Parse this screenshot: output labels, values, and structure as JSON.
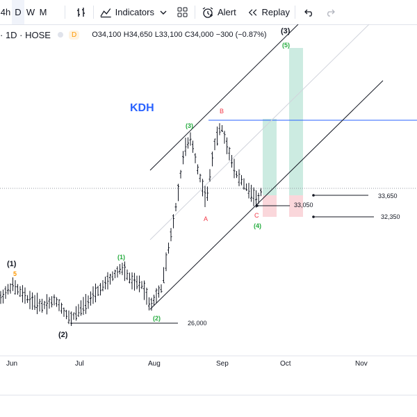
{
  "toolbar": {
    "timeframes": [
      "4h",
      "D",
      "W",
      "M"
    ],
    "active_timeframe": "D",
    "indicators_label": "Indicators",
    "alert_label": "Alert",
    "replay_label": "Replay"
  },
  "legend": {
    "symbol": "· 1D · HOSE",
    "badge": "D",
    "open": "O34,100",
    "high": "H34,650",
    "low": "L33,100",
    "close": "C34,000",
    "change": "−300 (−0.87%)"
  },
  "chart_data": {
    "type": "ohlc",
    "ticker_label": "KDH",
    "x_axis_labels": [
      "Jun",
      "Jul",
      "Aug",
      "Sep",
      "Oct",
      "Nov"
    ],
    "price_labels": [
      {
        "text": "33,650",
        "value": 33650
      },
      {
        "text": "33,050",
        "value": 33050
      },
      {
        "text": "32,350",
        "value": 32350
      },
      {
        "text": "26,000",
        "value": 26000
      }
    ],
    "wave_labels": {
      "major": [
        "(1)",
        "(2)",
        "(3)"
      ],
      "minor": [
        "(1)",
        "(2)",
        "(3)",
        "(4)",
        "(5)"
      ],
      "abc": [
        "A",
        "B",
        "C"
      ],
      "sub_five": "5"
    },
    "colors": {
      "up_bar": "#131722",
      "green_wave": "#22ab3c",
      "red_wave": "#f23645",
      "orange": "#ff9800",
      "ticker_blue": "#2962ff",
      "profit_zone": "#bfe6da",
      "loss_zone": "#f9cdd2",
      "horizontal_line": "#2962ff"
    }
  }
}
